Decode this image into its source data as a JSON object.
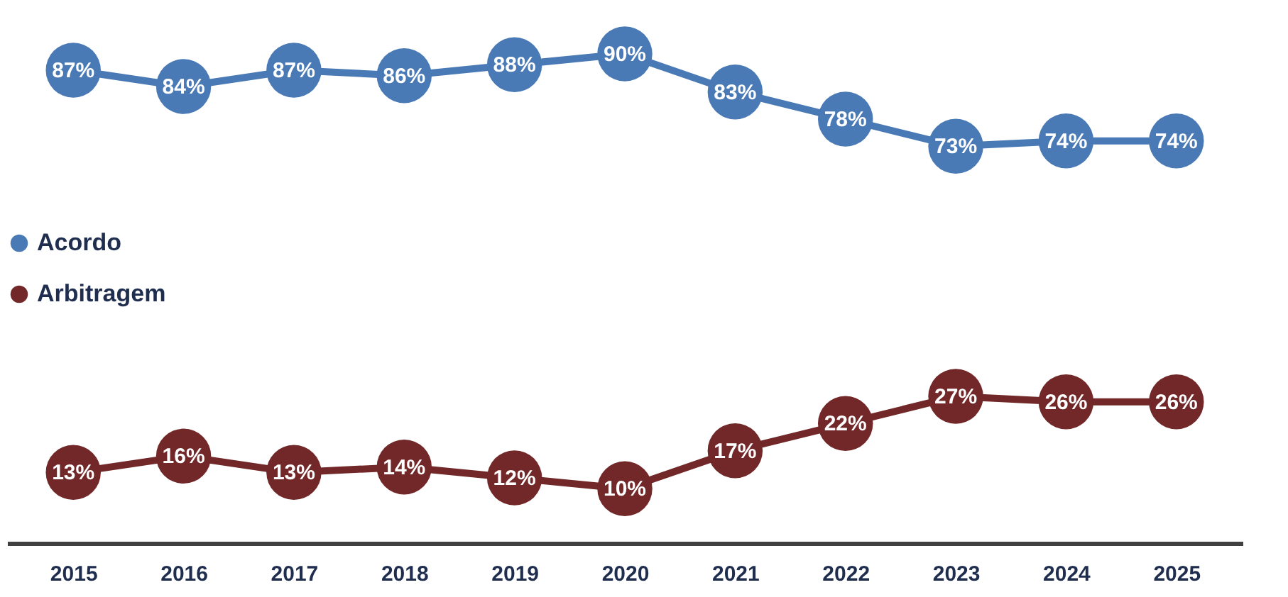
{
  "chart_data": {
    "type": "line",
    "categories": [
      "2015",
      "2016",
      "2017",
      "2018",
      "2019",
      "2020",
      "2021",
      "2022",
      "2023",
      "2024",
      "2025"
    ],
    "series": [
      {
        "name": "Acordo",
        "color": "#4a7ab5",
        "values": [
          87,
          84,
          87,
          86,
          88,
          90,
          83,
          78,
          73,
          74,
          74
        ],
        "value_labels": [
          "87%",
          "84%",
          "87%",
          "86%",
          "88%",
          "90%",
          "83%",
          "78%",
          "73%",
          "74%",
          "74%"
        ]
      },
      {
        "name": "Arbitragem",
        "color": "#722828",
        "values": [
          13,
          16,
          13,
          14,
          12,
          10,
          17,
          22,
          27,
          26,
          26
        ],
        "value_labels": [
          "13%",
          "16%",
          "13%",
          "14%",
          "12%",
          "10%",
          "17%",
          "22%",
          "27%",
          "26%",
          "26%"
        ]
      }
    ],
    "legend": "left",
    "marker": "circle",
    "line_style": "solid",
    "grid": false,
    "tick_labels": "x"
  }
}
